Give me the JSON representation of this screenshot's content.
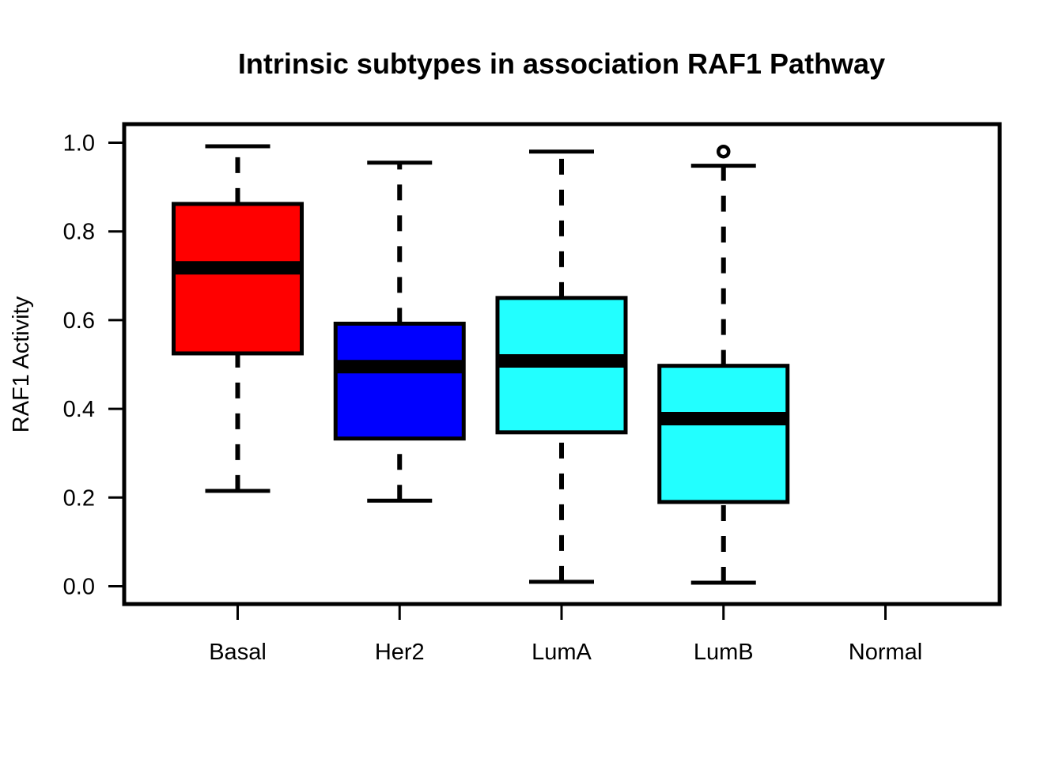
{
  "chart_data": {
    "type": "boxplot",
    "title": "Intrinsic subtypes in association RAF1 Pathway",
    "xlabel": "",
    "ylabel": "RAF1 Activity",
    "ylim": [
      -0.04,
      1.04
    ],
    "yticks": [
      "0.0",
      "0.2",
      "0.4",
      "0.6",
      "0.8",
      "1.0"
    ],
    "ytick_values": [
      0.0,
      0.2,
      0.4,
      0.6,
      0.8,
      1.0
    ],
    "categories": [
      "Basal",
      "Her2",
      "LumA",
      "LumB",
      "Normal"
    ],
    "boxes": [
      {
        "category": "Basal",
        "color": "#ff0000",
        "whisker_low": 0.215,
        "q1": 0.525,
        "median": 0.718,
        "q3": 0.862,
        "whisker_high": 0.992,
        "outliers": []
      },
      {
        "category": "Her2",
        "color": "#0000ff",
        "whisker_low": 0.193,
        "q1": 0.333,
        "median": 0.495,
        "q3": 0.592,
        "whisker_high": 0.955,
        "outliers": []
      },
      {
        "category": "LumA",
        "color": "#22ffff",
        "whisker_low": 0.01,
        "q1": 0.347,
        "median": 0.508,
        "q3": 0.65,
        "whisker_high": 0.98,
        "outliers": []
      },
      {
        "category": "LumB",
        "color": "#22ffff",
        "whisker_low": 0.008,
        "q1": 0.19,
        "median": 0.378,
        "q3": 0.497,
        "whisker_high": 0.948,
        "outliers": [
          0.98
        ]
      },
      {
        "category": "Normal",
        "color": "#ffffff",
        "whisker_low": null,
        "q1": null,
        "median": null,
        "q3": null,
        "whisker_high": null,
        "outliers": []
      }
    ],
    "grid": false,
    "legend": "none"
  }
}
